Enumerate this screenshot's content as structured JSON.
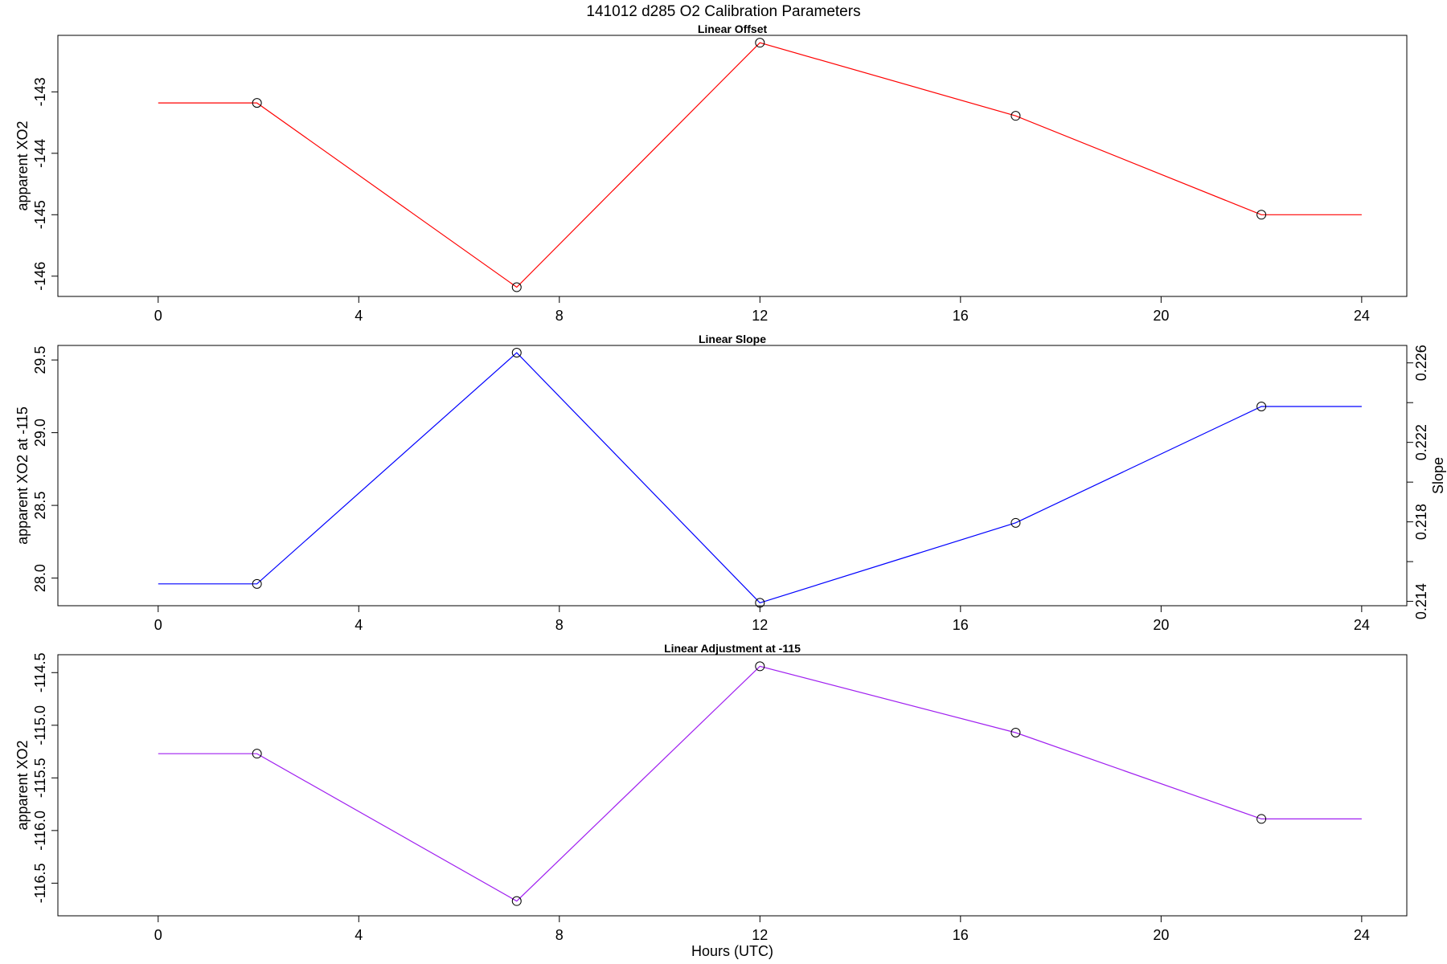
{
  "title": "141012   d285   O2 Calibration Parameters",
  "chart_data": [
    {
      "type": "line",
      "title": "Linear Offset",
      "xlabel": "",
      "ylabel": "apparent XO2",
      "xlim": [
        -2.0,
        24.9
      ],
      "ylim": [
        -146.33,
        -142.08
      ],
      "xticks": [
        0,
        4,
        8,
        12,
        16,
        20,
        24
      ],
      "yticks": [
        -146,
        -145,
        -144,
        -143
      ],
      "color": "#ff0000",
      "series": [
        {
          "values": [
            {
              "x": 0.0,
              "y": -143.18,
              "marker": false
            },
            {
              "x": 1.97,
              "y": -143.18,
              "marker": true
            },
            {
              "x": 7.15,
              "y": -146.18,
              "marker": true
            },
            {
              "x": 12.0,
              "y": -142.2,
              "marker": true
            },
            {
              "x": 17.1,
              "y": -143.39,
              "marker": true
            },
            {
              "x": 22.0,
              "y": -145.0,
              "marker": true
            },
            {
              "x": 24.0,
              "y": -145.0,
              "marker": false
            }
          ]
        }
      ]
    },
    {
      "type": "line",
      "title": "Linear Slope",
      "xlabel": "",
      "ylabel": "apparent XO2 at -115",
      "ylabel_right": "Slope",
      "xlim": [
        -2.0,
        24.9
      ],
      "ylim": [
        27.81,
        29.6
      ],
      "xticks": [
        0,
        4,
        8,
        12,
        16,
        20,
        24
      ],
      "yticks": [
        28.0,
        28.5,
        29.0,
        29.5
      ],
      "ytick_labels": [
        "28.0",
        "28.5",
        "29.0",
        "29.5"
      ],
      "yticks_right": [
        0.214,
        0.216,
        0.218,
        0.22,
        0.222,
        0.224,
        0.226
      ],
      "yticks_right_labels": [
        "0.214",
        "",
        "0.218",
        "",
        "0.222",
        "",
        "0.226"
      ],
      "color": "#0000ff",
      "series": [
        {
          "values": [
            {
              "x": 0.0,
              "y": 27.96,
              "marker": false
            },
            {
              "x": 1.97,
              "y": 27.96,
              "marker": true
            },
            {
              "x": 7.15,
              "y": 29.55,
              "marker": true
            },
            {
              "x": 12.0,
              "y": 27.83,
              "marker": true
            },
            {
              "x": 17.1,
              "y": 28.38,
              "marker": true
            },
            {
              "x": 22.0,
              "y": 29.18,
              "marker": true
            },
            {
              "x": 24.0,
              "y": 29.18,
              "marker": false
            }
          ]
        }
      ]
    },
    {
      "type": "line",
      "title": "Linear Adjustment at -115",
      "xlabel": "Hours (UTC)",
      "ylabel": "apparent XO2",
      "xlim": [
        -2.0,
        24.9
      ],
      "ylim": [
        -116.81,
        -114.33
      ],
      "xticks": [
        0,
        4,
        8,
        12,
        16,
        20,
        24
      ],
      "yticks": [
        -116.5,
        -116.0,
        -115.5,
        -115.0,
        -114.5
      ],
      "ytick_labels": [
        "-116.5",
        "-116.0",
        "-115.5",
        "-115.0",
        "-114.5"
      ],
      "color": "#a020f0",
      "series": [
        {
          "values": [
            {
              "x": 0.0,
              "y": -115.27,
              "marker": false
            },
            {
              "x": 1.97,
              "y": -115.27,
              "marker": true
            },
            {
              "x": 7.15,
              "y": -116.67,
              "marker": true
            },
            {
              "x": 12.0,
              "y": -114.44,
              "marker": true
            },
            {
              "x": 17.1,
              "y": -115.07,
              "marker": true
            },
            {
              "x": 22.0,
              "y": -115.89,
              "marker": true
            },
            {
              "x": 24.0,
              "y": -115.89,
              "marker": false
            }
          ]
        }
      ]
    }
  ]
}
